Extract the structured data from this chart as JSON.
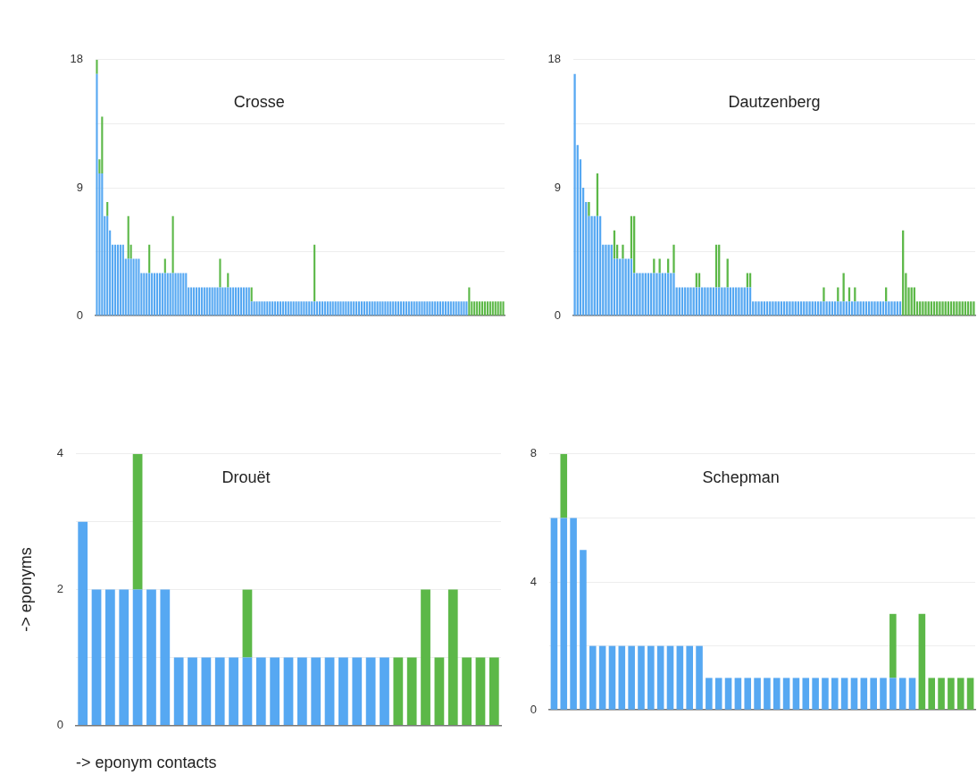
{
  "chart_data": [
    {
      "type": "bar",
      "stacked": true,
      "title": "Crosse",
      "tick_labels": "y",
      "grid": "y",
      "ylim": [
        0,
        18
      ],
      "yticks": [
        0,
        {
          "value": 4.5,
          "label": null
        },
        9,
        {
          "value": 13.5,
          "label": null
        },
        18
      ],
      "categories": [
        null,
        null,
        null,
        null,
        null,
        null,
        null,
        null,
        null,
        null,
        null,
        null,
        null,
        null,
        null,
        null,
        null,
        null,
        null,
        null,
        null,
        null,
        null,
        null,
        null,
        null,
        null,
        null,
        null,
        null,
        null,
        null,
        null,
        null,
        null,
        null,
        null,
        null,
        null,
        null,
        null,
        null,
        null,
        null,
        null,
        null,
        null,
        null,
        null,
        null,
        null,
        null,
        null,
        null,
        null,
        null,
        null,
        null,
        null,
        null,
        null,
        null,
        null,
        null,
        null,
        null,
        null,
        null,
        null,
        null,
        null,
        null,
        null,
        null,
        null,
        null,
        null,
        null,
        null,
        null,
        null,
        null,
        null,
        null,
        null,
        null,
        null,
        null,
        null,
        null,
        null,
        null,
        null,
        null,
        null,
        null,
        null,
        null,
        null,
        null,
        null,
        null,
        null,
        null,
        null,
        null,
        null,
        null,
        null,
        null,
        null,
        null,
        null,
        null,
        null,
        null,
        null,
        null,
        null,
        null,
        null,
        null,
        null,
        null,
        null,
        null,
        null,
        null,
        null,
        null,
        null,
        null,
        null,
        null,
        null,
        null,
        null,
        null,
        null,
        null,
        null,
        null,
        null,
        null,
        null,
        null,
        null,
        null,
        null,
        null,
        null,
        null,
        null,
        null,
        null,
        null
      ],
      "series": [
        {
          "color": "#56a8f2",
          "values": [
            17,
            10,
            10,
            7,
            7,
            6,
            5,
            5,
            5,
            5,
            5,
            4,
            4,
            4,
            4,
            4,
            4,
            3,
            3,
            3,
            3,
            3,
            3,
            3,
            3,
            3,
            3,
            3,
            3,
            3,
            3,
            3,
            3,
            3,
            3,
            2,
            2,
            2,
            2,
            2,
            2,
            2,
            2,
            2,
            2,
            2,
            2,
            2,
            2,
            2,
            2,
            2,
            2,
            2,
            2,
            2,
            2,
            2,
            2,
            1,
            1,
            1,
            1,
            1,
            1,
            1,
            1,
            1,
            1,
            1,
            1,
            1,
            1,
            1,
            1,
            1,
            1,
            1,
            1,
            1,
            1,
            1,
            1,
            1,
            1,
            1,
            1,
            1,
            1,
            1,
            1,
            1,
            1,
            1,
            1,
            1,
            1,
            1,
            1,
            1,
            1,
            1,
            1,
            1,
            1,
            1,
            1,
            1,
            1,
            1,
            1,
            1,
            1,
            1,
            1,
            1,
            1,
            1,
            1,
            1,
            1,
            1,
            1,
            1,
            1,
            1,
            1,
            1,
            1,
            1,
            1,
            1,
            1,
            1,
            1,
            1,
            1,
            1,
            1,
            1,
            1,
            1,
            0,
            0,
            0,
            0,
            0,
            0,
            0,
            0,
            0,
            0,
            0,
            0,
            0,
            0
          ]
        },
        {
          "color": "#5cb848",
          "values": [
            1,
            1,
            4,
            0,
            1,
            0,
            0,
            0,
            0,
            0,
            0,
            0,
            3,
            1,
            0,
            0,
            0,
            0,
            0,
            0,
            2,
            0,
            0,
            0,
            0,
            0,
            1,
            0,
            0,
            4,
            0,
            0,
            0,
            0,
            0,
            0,
            0,
            0,
            0,
            0,
            0,
            0,
            0,
            0,
            0,
            0,
            0,
            2,
            0,
            0,
            1,
            0,
            0,
            0,
            0,
            0,
            0,
            0,
            0,
            1,
            0,
            0,
            0,
            0,
            0,
            0,
            0,
            0,
            0,
            0,
            0,
            0,
            0,
            0,
            0,
            0,
            0,
            0,
            0,
            0,
            0,
            0,
            0,
            4,
            0,
            0,
            0,
            0,
            0,
            0,
            0,
            0,
            0,
            0,
            0,
            0,
            0,
            0,
            0,
            0,
            0,
            0,
            0,
            0,
            0,
            0,
            0,
            0,
            0,
            0,
            0,
            0,
            0,
            0,
            0,
            0,
            0,
            0,
            0,
            0,
            0,
            0,
            0,
            0,
            0,
            0,
            0,
            0,
            0,
            0,
            0,
            0,
            0,
            0,
            0,
            0,
            0,
            0,
            0,
            0,
            0,
            0,
            2,
            1,
            1,
            1,
            1,
            1,
            1,
            1,
            1,
            1,
            1,
            1,
            1,
            1
          ]
        }
      ]
    },
    {
      "type": "bar",
      "stacked": true,
      "title": "Dautzenberg",
      "tick_labels": "y",
      "grid": "y",
      "ylim": [
        0,
        18
      ],
      "yticks": [
        0,
        {
          "value": 4.5,
          "label": null
        },
        9,
        {
          "value": 13.5,
          "label": null
        },
        18
      ],
      "categories": [
        null,
        null,
        null,
        null,
        null,
        null,
        null,
        null,
        null,
        null,
        null,
        null,
        null,
        null,
        null,
        null,
        null,
        null,
        null,
        null,
        null,
        null,
        null,
        null,
        null,
        null,
        null,
        null,
        null,
        null,
        null,
        null,
        null,
        null,
        null,
        null,
        null,
        null,
        null,
        null,
        null,
        null,
        null,
        null,
        null,
        null,
        null,
        null,
        null,
        null,
        null,
        null,
        null,
        null,
        null,
        null,
        null,
        null,
        null,
        null,
        null,
        null,
        null,
        null,
        null,
        null,
        null,
        null,
        null,
        null,
        null,
        null,
        null,
        null,
        null,
        null,
        null,
        null,
        null,
        null,
        null,
        null,
        null,
        null,
        null,
        null,
        null,
        null,
        null,
        null,
        null,
        null,
        null,
        null,
        null,
        null,
        null,
        null,
        null,
        null,
        null,
        null,
        null,
        null,
        null,
        null,
        null,
        null,
        null,
        null,
        null,
        null,
        null,
        null,
        null,
        null,
        null,
        null,
        null,
        null,
        null,
        null,
        null,
        null,
        null,
        null,
        null,
        null,
        null,
        null,
        null,
        null,
        null,
        null,
        null,
        null,
        null,
        null,
        null,
        null,
        null,
        null
      ],
      "series": [
        {
          "color": "#56a8f2",
          "values": [
            17,
            12,
            11,
            9,
            8,
            7,
            7,
            7,
            7,
            7,
            5,
            5,
            5,
            5,
            4,
            4,
            4,
            4,
            4,
            4,
            4,
            3,
            3,
            3,
            3,
            3,
            3,
            3,
            3,
            3,
            3,
            3,
            3,
            3,
            3,
            3,
            2,
            2,
            2,
            2,
            2,
            2,
            2,
            2,
            2,
            2,
            2,
            2,
            2,
            2,
            2,
            2,
            2,
            2,
            2,
            2,
            2,
            2,
            2,
            2,
            2,
            2,
            2,
            1,
            1,
            1,
            1,
            1,
            1,
            1,
            1,
            1,
            1,
            1,
            1,
            1,
            1,
            1,
            1,
            1,
            1,
            1,
            1,
            1,
            1,
            1,
            1,
            1,
            1,
            1,
            1,
            1,
            1,
            1,
            1,
            1,
            1,
            1,
            1,
            1,
            1,
            1,
            1,
            1,
            1,
            1,
            1,
            1,
            1,
            1,
            1,
            1,
            1,
            1,
            1,
            1,
            0,
            0,
            0,
            0,
            0,
            0,
            0,
            0,
            0,
            0,
            0,
            0,
            0,
            0,
            0,
            0,
            0,
            0,
            0,
            0,
            0,
            0,
            0,
            0,
            0,
            0
          ]
        },
        {
          "color": "#5cb848",
          "values": [
            0,
            0,
            0,
            0,
            0,
            1,
            0,
            0,
            3,
            0,
            0,
            0,
            0,
            0,
            2,
            1,
            0,
            1,
            0,
            0,
            3,
            4,
            0,
            0,
            0,
            0,
            0,
            0,
            1,
            0,
            1,
            0,
            0,
            1,
            0,
            2,
            0,
            0,
            0,
            0,
            0,
            0,
            0,
            1,
            1,
            0,
            0,
            0,
            0,
            0,
            3,
            3,
            0,
            0,
            2,
            0,
            0,
            0,
            0,
            0,
            0,
            1,
            1,
            0,
            0,
            0,
            0,
            0,
            0,
            0,
            0,
            0,
            0,
            0,
            0,
            0,
            0,
            0,
            0,
            0,
            0,
            0,
            0,
            0,
            0,
            0,
            0,
            0,
            1,
            0,
            0,
            0,
            0,
            1,
            0,
            2,
            0,
            1,
            0,
            1,
            0,
            0,
            0,
            0,
            0,
            0,
            0,
            0,
            0,
            0,
            1,
            0,
            0,
            0,
            0,
            0,
            6,
            3,
            2,
            2,
            2,
            1,
            1,
            1,
            1,
            1,
            1,
            1,
            1,
            1,
            1,
            1,
            1,
            1,
            1,
            1,
            1,
            1,
            1,
            1,
            1,
            1
          ]
        }
      ]
    },
    {
      "type": "bar",
      "stacked": true,
      "title": "Drouët",
      "xlabel": "-> eponym contacts",
      "ylabel": "-> eponyms",
      "tick_labels": "y",
      "grid": "y",
      "ylim": [
        0,
        4
      ],
      "yticks": [
        0,
        {
          "value": 1,
          "label": null
        },
        2,
        {
          "value": 3,
          "label": null
        },
        4
      ],
      "categories": [
        null,
        null,
        null,
        null,
        null,
        null,
        null,
        null,
        null,
        null,
        null,
        null,
        null,
        null,
        null,
        null,
        null,
        null,
        null,
        null,
        null,
        null,
        null,
        null,
        null,
        null,
        null,
        null,
        null,
        null,
        null
      ],
      "series": [
        {
          "color": "#56a8f2",
          "values": [
            3,
            2,
            2,
            2,
            2,
            2,
            2,
            1,
            1,
            1,
            1,
            1,
            1,
            1,
            1,
            1,
            1,
            1,
            1,
            1,
            1,
            1,
            1,
            0,
            0,
            0,
            0,
            0,
            0,
            0,
            0
          ]
        },
        {
          "color": "#5cb848",
          "values": [
            0,
            0,
            0,
            0,
            2,
            0,
            0,
            0,
            0,
            0,
            0,
            0,
            1,
            0,
            0,
            0,
            0,
            0,
            0,
            0,
            0,
            0,
            0,
            1,
            1,
            2,
            1,
            2,
            1,
            1,
            1
          ]
        }
      ]
    },
    {
      "type": "bar",
      "stacked": true,
      "title": "Schepman",
      "tick_labels": "y",
      "grid": "y",
      "ylim": [
        0,
        8
      ],
      "yticks": [
        0,
        {
          "value": 2,
          "label": null
        },
        4,
        {
          "value": 6,
          "label": null
        },
        8
      ],
      "categories": [
        null,
        null,
        null,
        null,
        null,
        null,
        null,
        null,
        null,
        null,
        null,
        null,
        null,
        null,
        null,
        null,
        null,
        null,
        null,
        null,
        null,
        null,
        null,
        null,
        null,
        null,
        null,
        null,
        null,
        null,
        null,
        null,
        null,
        null,
        null,
        null,
        null,
        null,
        null,
        null,
        null,
        null,
        null,
        null
      ],
      "series": [
        {
          "color": "#56a8f2",
          "values": [
            6,
            6,
            6,
            5,
            2,
            2,
            2,
            2,
            2,
            2,
            2,
            2,
            2,
            2,
            2,
            2,
            1,
            1,
            1,
            1,
            1,
            1,
            1,
            1,
            1,
            1,
            1,
            1,
            1,
            1,
            1,
            1,
            1,
            1,
            1,
            1,
            1,
            1,
            0,
            0,
            0,
            0,
            0,
            0
          ]
        },
        {
          "color": "#5cb848",
          "values": [
            0,
            2,
            0,
            0,
            0,
            0,
            0,
            0,
            0,
            0,
            0,
            0,
            0,
            0,
            0,
            0,
            0,
            0,
            0,
            0,
            0,
            0,
            0,
            0,
            0,
            0,
            0,
            0,
            0,
            0,
            0,
            0,
            0,
            0,
            0,
            2,
            0,
            0,
            3,
            1,
            1,
            1,
            1,
            1
          ]
        }
      ]
    }
  ]
}
